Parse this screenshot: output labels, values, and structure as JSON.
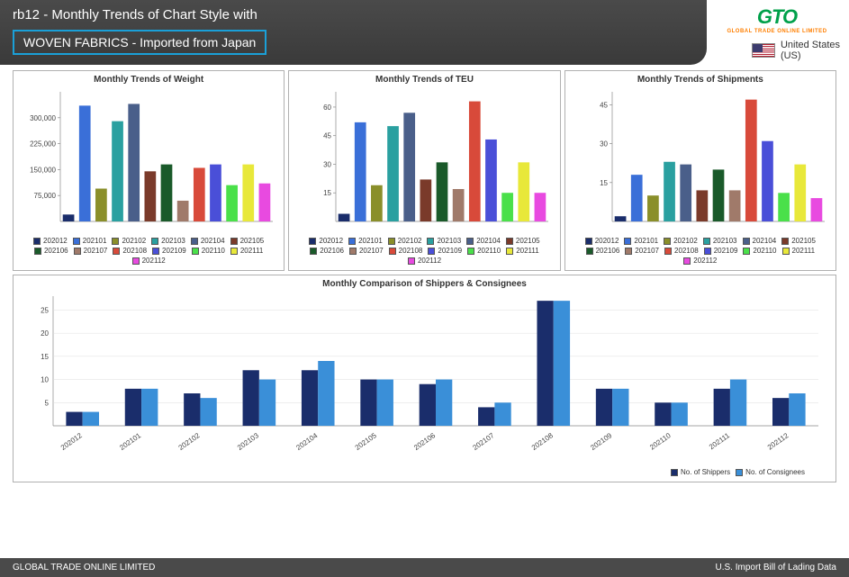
{
  "header": {
    "title": "rb12 - Monthly Trends of Chart Style with",
    "subtitle": "WOVEN FABRICS - Imported from Japan"
  },
  "logo": {
    "text": "GTO",
    "sub": "GLOBAL TRADE ONLINE LIMITED"
  },
  "country": {
    "name": "United States",
    "code": "(US)"
  },
  "months": [
    "202012",
    "202101",
    "202102",
    "202103",
    "202104",
    "202105",
    "202106",
    "202107",
    "202108",
    "202109",
    "202110",
    "202111",
    "202112"
  ],
  "month_colors": [
    "#1a2d6b",
    "#3a6fd8",
    "#8a8f2a",
    "#2aa0a0",
    "#4a5f8a",
    "#7a3a2a",
    "#1a5a2a",
    "#a07a6a",
    "#d84a3a",
    "#4a4fd8",
    "#4ae04a",
    "#e8e83a",
    "#e84ae0"
  ],
  "chart_weight": {
    "title": "Monthly Trends of Weight",
    "type": "bar",
    "values": [
      20000,
      335000,
      95000,
      290000,
      340000,
      145000,
      165000,
      60000,
      155000,
      165000,
      105000,
      165000,
      110000
    ],
    "ymax": 375000,
    "yticks": [
      75000,
      150000,
      225000,
      300000
    ],
    "tick_fontsize": 8,
    "title_fontsize": 10
  },
  "chart_teu": {
    "title": "Monthly Trends of TEU",
    "type": "bar",
    "values": [
      4,
      52,
      19,
      50,
      57,
      22,
      31,
      17,
      63,
      43,
      15,
      31,
      15
    ],
    "ymax": 68,
    "yticks": [
      15,
      30,
      45,
      60
    ],
    "tick_fontsize": 8,
    "title_fontsize": 10
  },
  "chart_shipments": {
    "title": "Monthly Trends of Shipments",
    "type": "bar",
    "values": [
      2,
      18,
      10,
      23,
      22,
      12,
      20,
      12,
      47,
      31,
      11,
      22,
      9
    ],
    "ymax": 50,
    "yticks": [
      15,
      30,
      45
    ],
    "tick_fontsize": 8,
    "title_fontsize": 10
  },
  "chart_compare": {
    "title": "Monthly Comparison of Shippers & Consignees",
    "type": "grouped-bar",
    "series": [
      {
        "name": "No. of Shippers",
        "color": "#1a2d6b",
        "values": [
          3,
          8,
          7,
          12,
          12,
          10,
          9,
          4,
          27,
          8,
          5,
          8,
          6
        ]
      },
      {
        "name": "No. of Consignees",
        "color": "#3a8fd8",
        "values": [
          3,
          8,
          6,
          10,
          14,
          10,
          10,
          5,
          27,
          8,
          5,
          10,
          7
        ]
      }
    ],
    "ymax": 28,
    "yticks": [
      5,
      10,
      15,
      20,
      25
    ],
    "tick_fontsize": 8,
    "title_fontsize": 10
  },
  "footer": {
    "left": "GLOBAL TRADE ONLINE LIMITED",
    "right": "U.S. Import Bill of Lading Data"
  }
}
